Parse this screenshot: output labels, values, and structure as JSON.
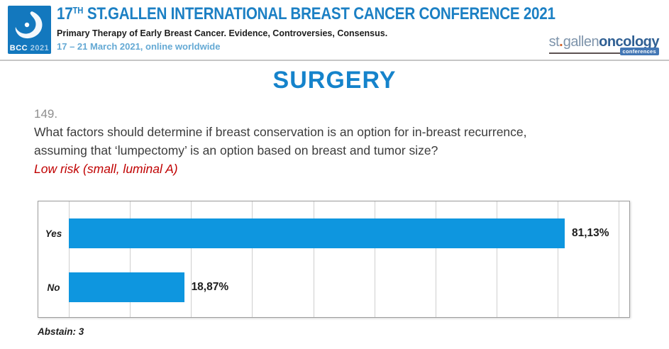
{
  "header": {
    "logo": {
      "bcc": "BCC",
      "year": "2021"
    },
    "title_num": "17",
    "title_sup": "TH",
    "title_rest": " ST.GALLEN INTERNATIONAL BREAST CANCER CONFERENCE 2021",
    "subtitle": "Primary Therapy of Early Breast Cancer. Evidence, Controversies, Consensus.",
    "dates": "17 – 21 March 2021, online worldwide",
    "org_logo": {
      "st": "st",
      "dot": ".",
      "gallen": "gallen",
      "oncology": "oncology",
      "badge": "conferences"
    }
  },
  "section_title": "SURGERY",
  "question": {
    "number": "149.",
    "text": "What factors should determine if breast conservation is an option for in-breast recurrence, assuming that ‘lumpectomy’ is an option based on breast and tumor size?",
    "qualifier": "Low risk (small, luminal A)"
  },
  "chart_data": {
    "type": "bar",
    "orientation": "horizontal",
    "title": "",
    "categories": [
      "Yes",
      "No"
    ],
    "values": [
      81.13,
      18.87
    ],
    "value_labels": [
      "81,13%",
      "18,87%"
    ],
    "xlim": [
      0,
      91
    ],
    "gridline_interval": 10,
    "grid": true,
    "legend": false,
    "bar_color": "#0E96DF",
    "grid_color": "#CFCFCF"
  },
  "footer": {
    "abstain": "Abstain: 3"
  },
  "colors": {
    "title_blue": "#1C80C4",
    "date_blue": "#64A9D4",
    "section_blue": "#1583CB",
    "qualifier_red": "#C00000",
    "bar_blue": "#0E96DF",
    "logo_blue": "#1378BE"
  }
}
